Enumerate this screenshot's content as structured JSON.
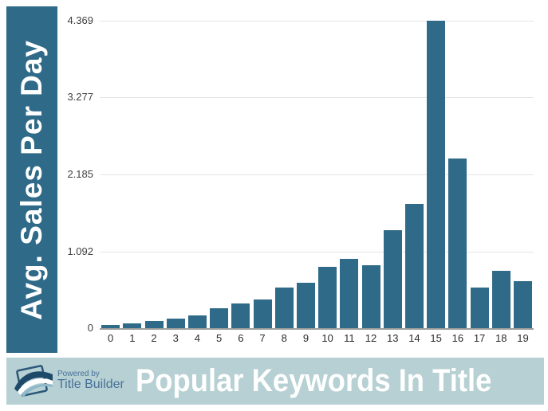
{
  "sidebar": {
    "label": "Avg. Sales Per Day",
    "bg_color": "#2f6a88",
    "text_color": "#ffffff"
  },
  "chart_data": {
    "type": "bar",
    "title": "Popular Keywords In Title",
    "xlabel": "",
    "ylabel": "Avg. Sales Per Day",
    "categories": [
      "0",
      "1",
      "2",
      "3",
      "4",
      "5",
      "6",
      "7",
      "8",
      "9",
      "10",
      "11",
      "12",
      "13",
      "14",
      "15",
      "16",
      "17",
      "18",
      "19"
    ],
    "values": [
      0.05,
      0.07,
      0.1,
      0.14,
      0.18,
      0.28,
      0.35,
      0.41,
      0.58,
      0.65,
      0.87,
      0.98,
      0.9,
      1.39,
      1.77,
      4.369,
      2.41,
      0.58,
      0.82,
      0.67
    ],
    "ylim": [
      0,
      4.369
    ],
    "ytick_values": [
      0,
      1.092,
      2.185,
      3.277,
      4.369
    ],
    "ytick_labels": [
      "0",
      "1.092",
      "2.185",
      "3.277",
      "4.369"
    ],
    "grid": true,
    "legend": false,
    "bar_color": "#2f6a88",
    "gridline_color": "#e4e4e4"
  },
  "footer": {
    "powered_by": "Powered by",
    "brand": "Title Builder",
    "title": "Popular Keywords In Title",
    "bg_color": "#b7d0d3",
    "brand_text_color": "#477199",
    "title_color": "#ffffff",
    "logo_icon": "book-logo-icon"
  }
}
